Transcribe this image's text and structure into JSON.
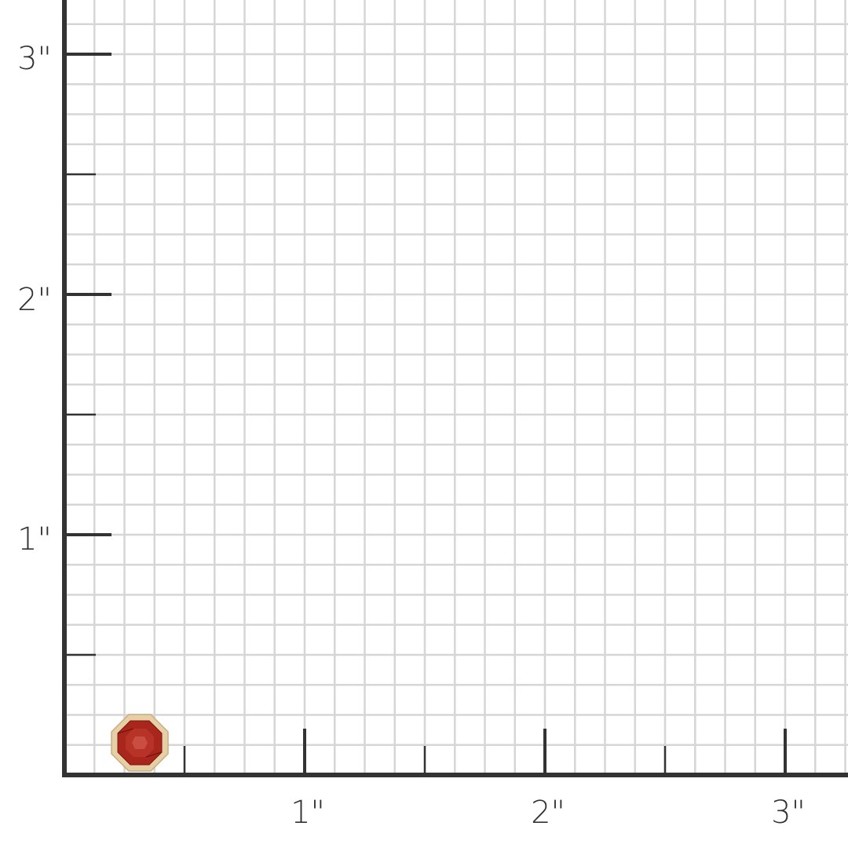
{
  "scale": {
    "unit": "inch",
    "x_labels": [
      "1\"",
      "2\"",
      "3\""
    ],
    "y_labels": [
      "1\"",
      "2\"",
      "3\""
    ],
    "subdivisions_per_inch": 8,
    "axis_color": "#333333",
    "grid_color": "#d6d6d6"
  },
  "product": {
    "icon": "octagon-gemstone-stud-earring",
    "stone_color": "#a8261c",
    "metal_color": "#e6cfa6"
  }
}
